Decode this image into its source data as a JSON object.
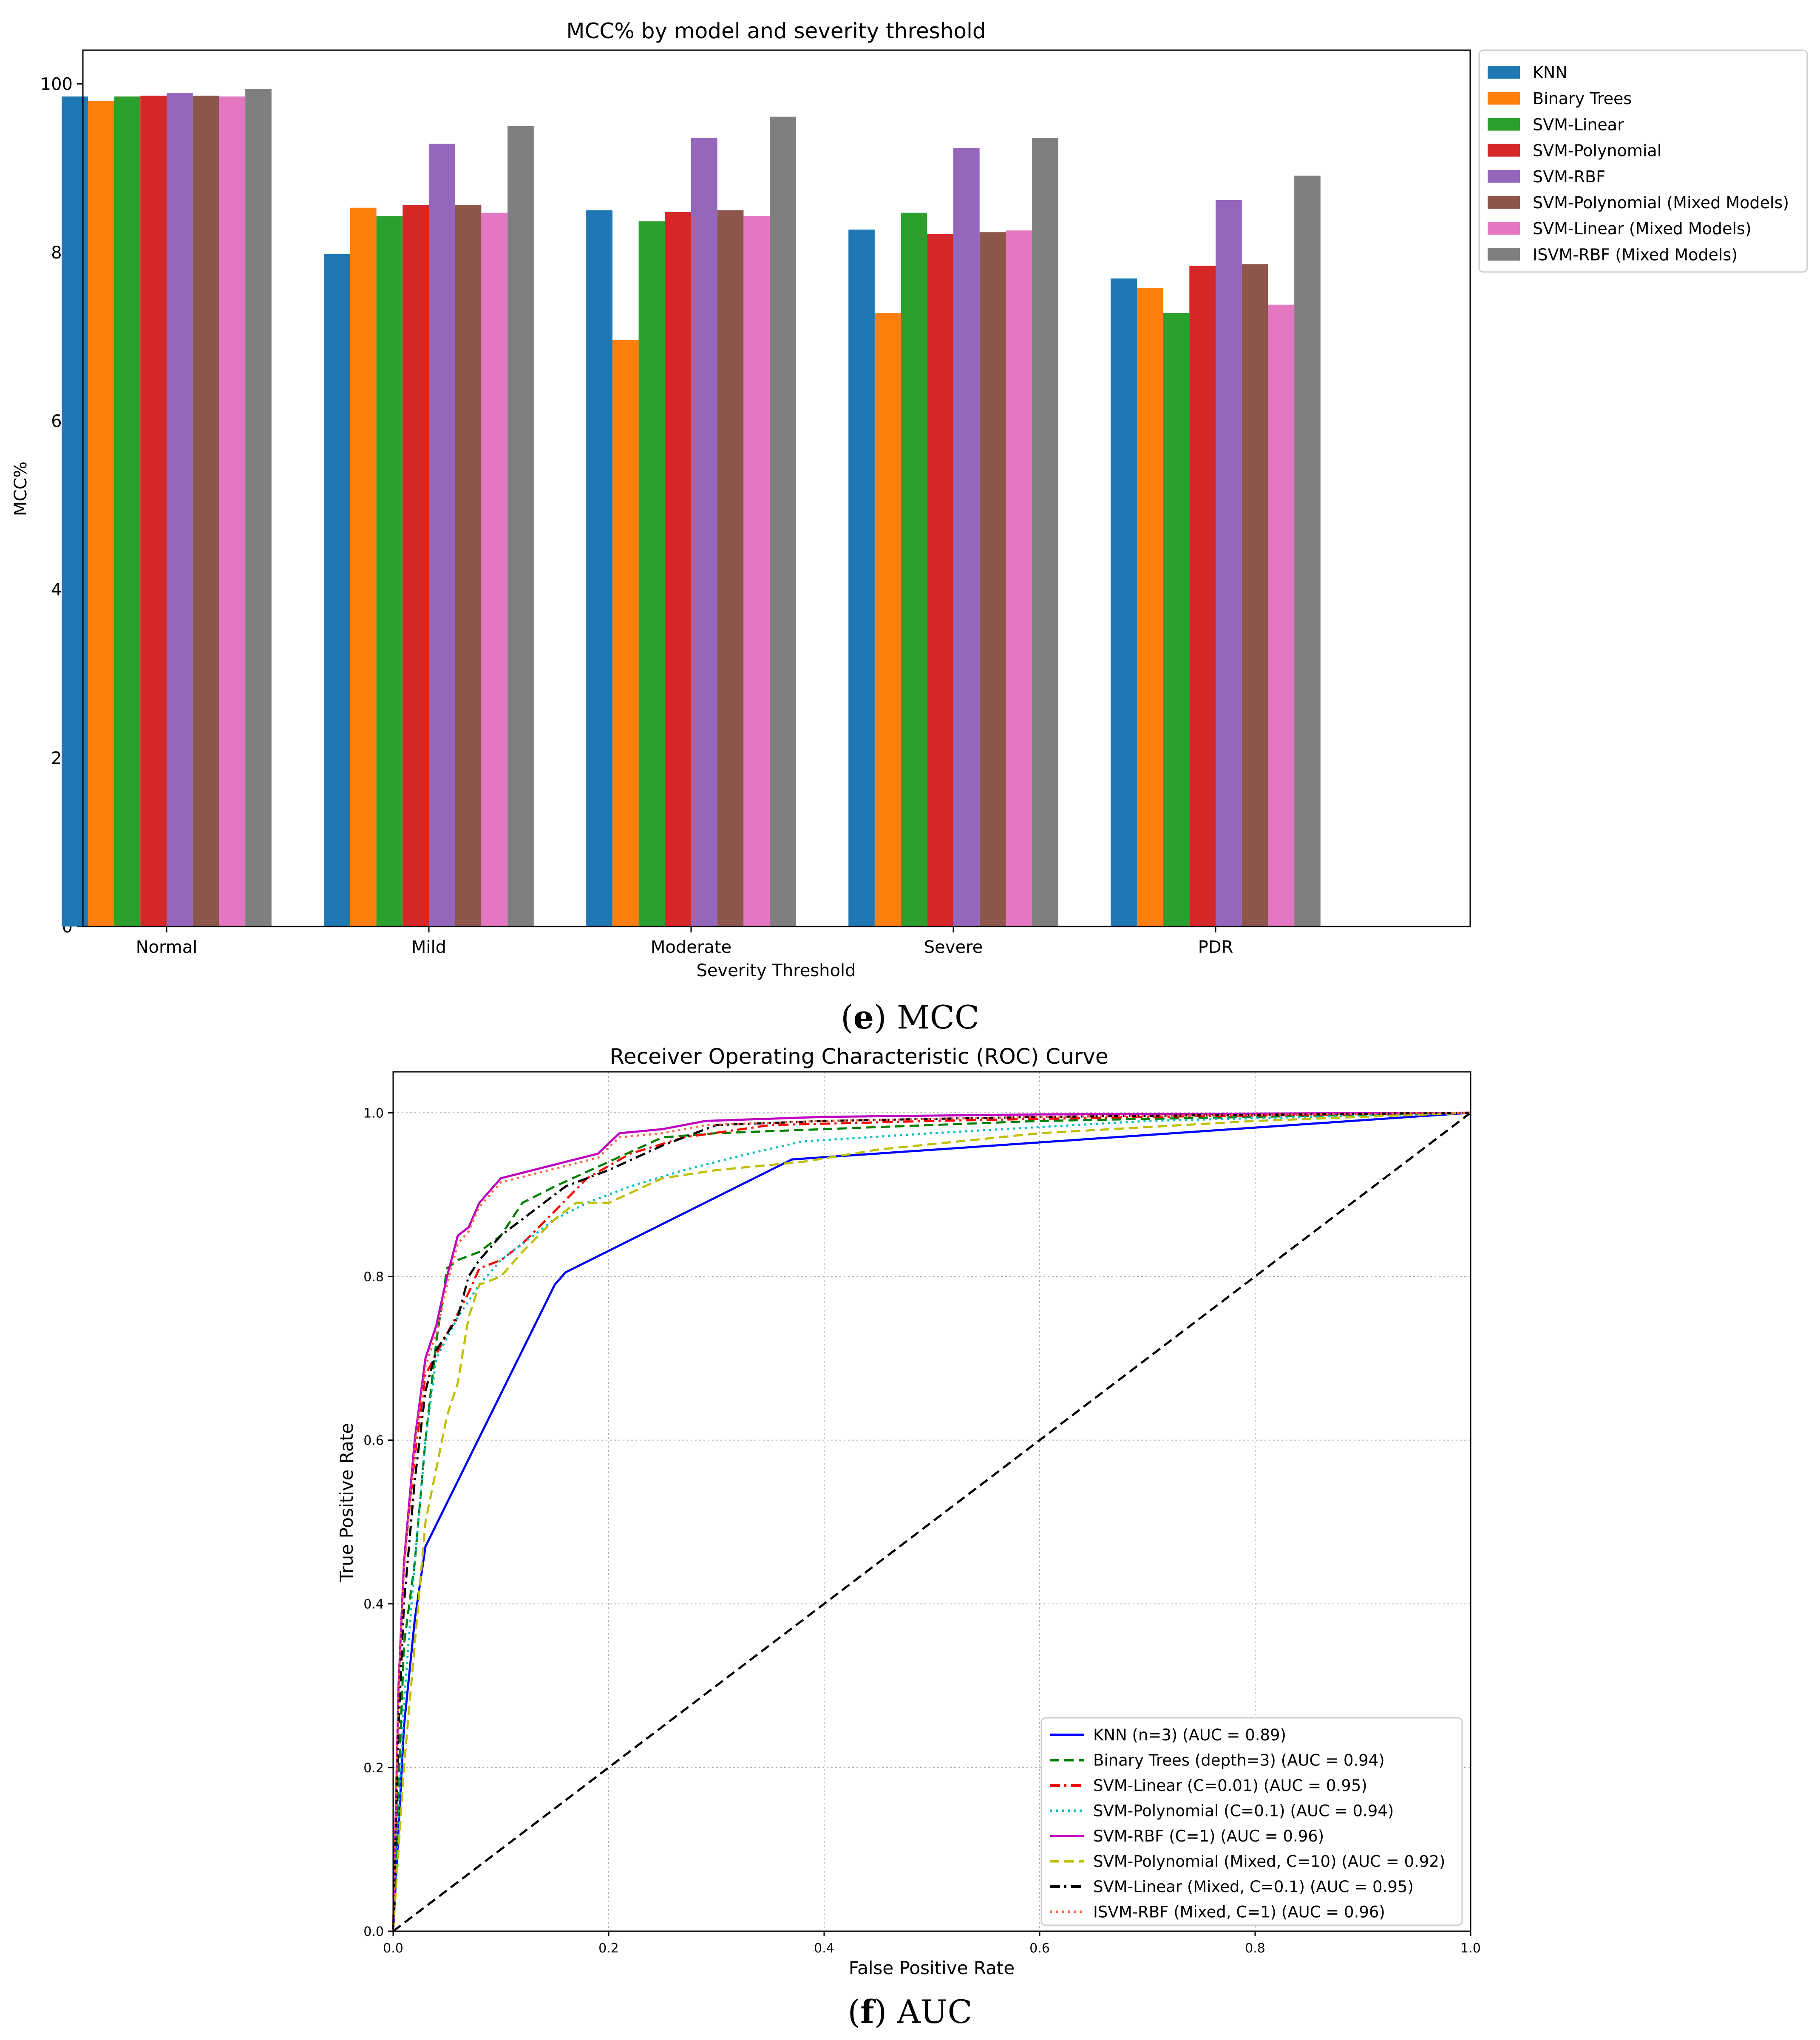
{
  "figure_e": {
    "caption_letter": "e",
    "caption_text": " MCC"
  },
  "figure_f": {
    "caption_letter": "f",
    "caption_text": " AUC"
  },
  "chart_data": [
    {
      "type": "bar",
      "title": "MCC% by model and severity threshold",
      "xlabel": "Severity Threshold",
      "ylabel": "MCC%",
      "ylim": [
        0,
        104
      ],
      "yticks": [
        0,
        20,
        40,
        60,
        80,
        100
      ],
      "legend_position": "outside-right",
      "categories": [
        "Normal",
        "Mild",
        "Moderate",
        "Severe",
        "PDR"
      ],
      "series": [
        {
          "name": "KNN",
          "color": "#1f77b4",
          "values": [
            98.5,
            79.8,
            85.0,
            82.7,
            76.9
          ]
        },
        {
          "name": "Binary Trees",
          "color": "#ff7f0e",
          "values": [
            98.0,
            85.3,
            69.6,
            72.8,
            75.8
          ]
        },
        {
          "name": "SVM-Linear",
          "color": "#2ca02c",
          "values": [
            98.5,
            84.3,
            83.7,
            84.7,
            72.8
          ]
        },
        {
          "name": "SVM-Polynomial",
          "color": "#d62728",
          "values": [
            98.6,
            85.6,
            84.8,
            82.2,
            78.4
          ]
        },
        {
          "name": "SVM-RBF",
          "color": "#9467bd",
          "values": [
            98.9,
            92.9,
            93.6,
            92.4,
            86.2
          ]
        },
        {
          "name": "SVM-Polynomial (Mixed Models)",
          "color": "#8c564b",
          "values": [
            98.6,
            85.6,
            85.0,
            82.4,
            78.6
          ]
        },
        {
          "name": "SVM-Linear (Mixed Models)",
          "color": "#e377c2",
          "values": [
            98.5,
            84.7,
            84.3,
            82.6,
            73.8
          ]
        },
        {
          "name": "ISVM-RBF (Mixed Models)",
          "color": "#7f7f7f",
          "values": [
            99.4,
            95.0,
            96.1,
            93.6,
            89.1
          ]
        }
      ]
    },
    {
      "type": "line",
      "title": "Receiver Operating Characteristic (ROC) Curve",
      "xlabel": "False Positive Rate",
      "ylabel": "True Positive Rate",
      "xlim": [
        0,
        1
      ],
      "ylim": [
        0,
        1.05
      ],
      "xticks": [
        "0.0",
        "0.2",
        "0.4",
        "0.6",
        "0.8",
        "1.0"
      ],
      "yticks": [
        "0.0",
        "0.2",
        "0.4",
        "0.6",
        "0.8",
        "1.0"
      ],
      "grid": true,
      "legend_position": "lower-right",
      "chance_line": {
        "x": [
          0,
          1
        ],
        "y": [
          0,
          1
        ],
        "color": "#000000",
        "dash": "dashed"
      },
      "series": [
        {
          "name": "KNN (n=3) (AUC = 0.89)",
          "color": "#0000ff",
          "dash": "solid",
          "x": [
            0,
            0.01,
            0.02,
            0.03,
            0.15,
            0.16,
            0.37,
            1.0
          ],
          "y": [
            0,
            0.25,
            0.38,
            0.47,
            0.79,
            0.805,
            0.943,
            1.0
          ]
        },
        {
          "name": "Binary Trees (depth=3) (AUC = 0.94)",
          "color": "#008000",
          "dash": "dashed",
          "x": [
            0,
            0.01,
            0.02,
            0.03,
            0.04,
            0.05,
            0.06,
            0.08,
            0.1,
            0.12,
            0.15,
            0.2,
            0.25,
            0.3,
            0.4,
            0.6,
            1.0
          ],
          "y": [
            0,
            0.35,
            0.45,
            0.6,
            0.72,
            0.81,
            0.82,
            0.83,
            0.85,
            0.89,
            0.91,
            0.94,
            0.97,
            0.975,
            0.98,
            0.99,
            1.0
          ]
        },
        {
          "name": "SVM-Linear (C=0.01) (AUC = 0.95)",
          "color": "#ff0000",
          "dash": "dashdot",
          "x": [
            0,
            0.005,
            0.01,
            0.02,
            0.03,
            0.05,
            0.07,
            0.08,
            0.1,
            0.12,
            0.15,
            0.18,
            0.22,
            0.27,
            0.35,
            0.5,
            0.7,
            1.0
          ],
          "y": [
            0,
            0.3,
            0.45,
            0.58,
            0.68,
            0.73,
            0.78,
            0.81,
            0.82,
            0.84,
            0.88,
            0.92,
            0.95,
            0.97,
            0.985,
            0.99,
            0.995,
            1.0
          ]
        },
        {
          "name": "SVM-Polynomial (C=0.1) (AUC = 0.94)",
          "color": "#00bfbf",
          "dash": "dotted",
          "x": [
            0,
            0.01,
            0.02,
            0.03,
            0.04,
            0.06,
            0.08,
            0.1,
            0.12,
            0.15,
            0.18,
            0.22,
            0.27,
            0.33,
            0.38,
            0.5,
            0.7,
            1.0
          ],
          "y": [
            0,
            0.28,
            0.45,
            0.6,
            0.7,
            0.75,
            0.79,
            0.82,
            0.84,
            0.87,
            0.89,
            0.91,
            0.93,
            0.95,
            0.965,
            0.975,
            0.99,
            1.0
          ]
        },
        {
          "name": "SVM-RBF (C=1) (AUC = 0.96)",
          "color": "#bf00bf",
          "dash": "solid",
          "x": [
            0,
            0.005,
            0.01,
            0.02,
            0.03,
            0.04,
            0.05,
            0.06,
            0.07,
            0.08,
            0.1,
            0.13,
            0.16,
            0.19,
            0.21,
            0.25,
            0.29,
            0.4,
            0.6,
            1.0
          ],
          "y": [
            0,
            0.3,
            0.45,
            0.6,
            0.7,
            0.74,
            0.8,
            0.85,
            0.86,
            0.89,
            0.92,
            0.93,
            0.94,
            0.95,
            0.975,
            0.98,
            0.99,
            0.995,
            0.998,
            1.0
          ]
        },
        {
          "name": "SVM-Polynomial (Mixed, C=10) (AUC = 0.92)",
          "color": "#bfbf00",
          "dash": "dashed",
          "x": [
            0,
            0.01,
            0.02,
            0.03,
            0.05,
            0.06,
            0.07,
            0.08,
            0.1,
            0.12,
            0.15,
            0.17,
            0.2,
            0.25,
            0.3,
            0.38,
            0.45,
            0.6,
            0.8,
            1.0
          ],
          "y": [
            0,
            0.2,
            0.35,
            0.5,
            0.63,
            0.67,
            0.75,
            0.79,
            0.8,
            0.83,
            0.87,
            0.89,
            0.89,
            0.92,
            0.93,
            0.94,
            0.955,
            0.975,
            0.99,
            1.0
          ]
        },
        {
          "name": "SVM-Linear (Mixed, C=0.1) (AUC = 0.95)",
          "color": "#000000",
          "dash": "dashdot",
          "x": [
            0,
            0.005,
            0.01,
            0.02,
            0.03,
            0.04,
            0.05,
            0.06,
            0.07,
            0.08,
            0.1,
            0.12,
            0.14,
            0.16,
            0.2,
            0.25,
            0.3,
            0.4,
            0.6,
            1.0
          ],
          "y": [
            0,
            0.25,
            0.4,
            0.55,
            0.66,
            0.71,
            0.73,
            0.75,
            0.8,
            0.82,
            0.85,
            0.87,
            0.89,
            0.91,
            0.93,
            0.96,
            0.985,
            0.99,
            0.995,
            1.0
          ]
        },
        {
          "name": "ISVM-RBF (Mixed, C=1) (AUC = 0.96)",
          "color": "#ff6347",
          "dash": "dotted",
          "x": [
            0,
            0.005,
            0.01,
            0.02,
            0.03,
            0.04,
            0.05,
            0.06,
            0.07,
            0.08,
            0.1,
            0.13,
            0.16,
            0.19,
            0.21,
            0.25,
            0.29,
            0.4,
            0.6,
            1.0
          ],
          "y": [
            0,
            0.3,
            0.44,
            0.59,
            0.69,
            0.73,
            0.79,
            0.84,
            0.855,
            0.885,
            0.915,
            0.925,
            0.935,
            0.945,
            0.97,
            0.975,
            0.985,
            0.99,
            0.995,
            1.0
          ]
        }
      ]
    }
  ]
}
